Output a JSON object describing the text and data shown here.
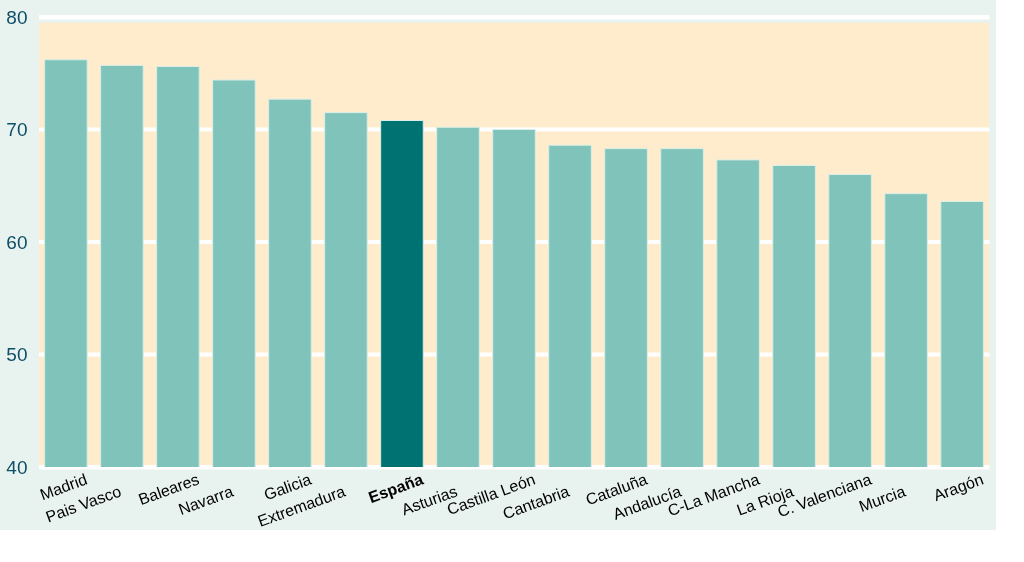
{
  "chart_data": {
    "type": "bar",
    "categories": [
      "Madrid",
      "Pais Vasco",
      "Baleares",
      "Navarra",
      "Galicia",
      "Extremadura",
      "España",
      "Asturias",
      "Castilla León",
      "Cantabria",
      "Cataluña",
      "Andalucía",
      "C-La Mancha",
      "La Rioja",
      "C. Valenciana",
      "Murcia",
      "Aragón"
    ],
    "values": [
      76.2,
      75.7,
      75.6,
      74.4,
      72.7,
      71.5,
      70.8,
      70.2,
      70.0,
      68.6,
      68.3,
      68.3,
      67.3,
      66.8,
      66.0,
      64.3,
      63.6
    ],
    "colors": [
      "#80c3bb",
      "#80c3bb",
      "#80c3bb",
      "#80c3bb",
      "#80c3bb",
      "#80c3bb",
      "#007272",
      "#80c3bb",
      "#80c3bb",
      "#80c3bb",
      "#80c3bb",
      "#80c3bb",
      "#80c3bb",
      "#80c3bb",
      "#80c3bb",
      "#80c3bb",
      "#80c3bb"
    ],
    "bands": [
      {
        "axis": "y",
        "from": 40,
        "to": 79.5,
        "color": "#ffeccc"
      }
    ],
    "ylim": [
      40,
      80
    ],
    "yticks": [
      40,
      50,
      60,
      70,
      80
    ],
    "grid": "y"
  }
}
